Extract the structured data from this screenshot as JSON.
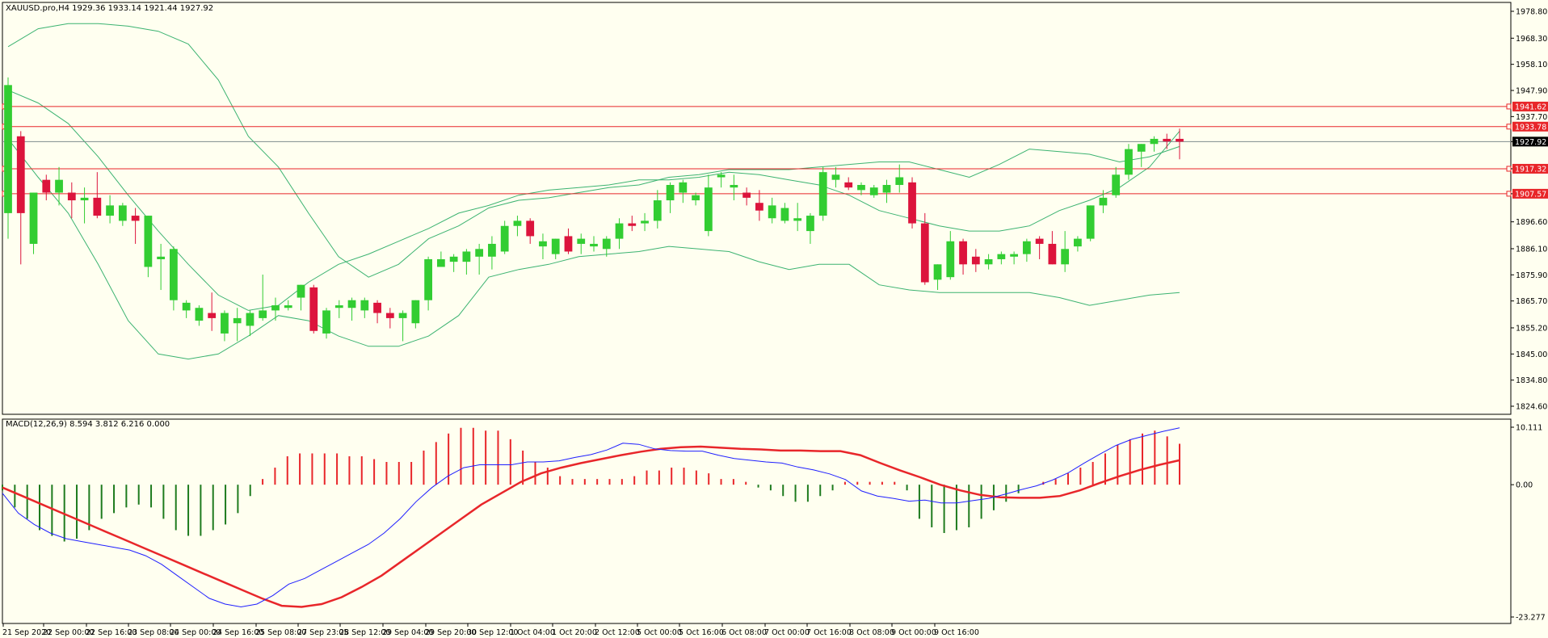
{
  "colors": {
    "background": "#fffff0",
    "bull_candle": "#32cd32",
    "bear_candle": "#dc143c",
    "bollinger": "#3cb371",
    "level_line": "#e8262a",
    "current_line": "#7f8c8d",
    "macd_hist_pos": "#e8262a",
    "macd_hist_neg": "#1e7b1e",
    "macd_line": "#1f1fff",
    "signal_line": "#e8262a"
  },
  "chart_data": [
    {
      "type": "candlestick",
      "title": "XAUUSD.pro,H4  1929.36 1933.14 1921.44 1927.92",
      "ylim": [
        1824.6,
        1978.8
      ],
      "y_ticks": [
        "1978.80",
        "1968.30",
        "1958.10",
        "1947.90",
        "1937.70",
        "1927.92",
        "1917.32",
        "1907.57",
        "1896.60",
        "1886.10",
        "1875.90",
        "1865.70",
        "1855.20",
        "1845.00",
        "1834.80",
        "1824.60"
      ],
      "x_ticks": [
        "21 Sep 2020",
        "22 Sep 00:00",
        "22 Sep 16:00",
        "23 Sep 08:00",
        "24 Sep 00:00",
        "24 Sep 16:00",
        "25 Sep 08:00",
        "27 Sep 23:05",
        "28 Sep 12:00",
        "29 Sep 04:00",
        "29 Sep 20:00",
        "30 Sep 12:00",
        "1 Oct 04:00",
        "1 Oct 20:00",
        "2 Oct 12:00",
        "5 Oct 00:00",
        "5 Oct 16:00",
        "6 Oct 08:00",
        "7 Oct 00:00",
        "7 Oct 16:00",
        "8 Oct 08:00",
        "9 Oct 00:00",
        "9 Oct 16:00"
      ],
      "levels": [
        {
          "price": 1941.62,
          "label": "1941.62"
        },
        {
          "price": 1933.78,
          "label": "1933.78"
        },
        {
          "price": 1917.32,
          "label": "1917.32"
        },
        {
          "price": 1907.57,
          "label": "1907.57"
        }
      ],
      "current_price": {
        "price": 1927.92,
        "label": "1927.92"
      },
      "candles": [
        {
          "o": 1900,
          "h": 1953,
          "l": 1890,
          "c": 1950
        },
        {
          "o": 1930,
          "h": 1932,
          "l": 1880,
          "c": 1900
        },
        {
          "o": 1888,
          "h": 1908,
          "l": 1884,
          "c": 1908
        },
        {
          "o": 1913,
          "h": 1915,
          "l": 1905,
          "c": 1908
        },
        {
          "o": 1908,
          "h": 1918,
          "l": 1903,
          "c": 1913
        },
        {
          "o": 1908,
          "h": 1912,
          "l": 1898,
          "c": 1905
        },
        {
          "o": 1905,
          "h": 1910,
          "l": 1896,
          "c": 1906
        },
        {
          "o": 1906,
          "h": 1916,
          "l": 1898,
          "c": 1899
        },
        {
          "o": 1899,
          "h": 1907,
          "l": 1896,
          "c": 1903
        },
        {
          "o": 1897,
          "h": 1904,
          "l": 1895,
          "c": 1903
        },
        {
          "o": 1899,
          "h": 1902,
          "l": 1888,
          "c": 1897
        },
        {
          "o": 1879,
          "h": 1899,
          "l": 1875,
          "c": 1899
        },
        {
          "o": 1882,
          "h": 1888,
          "l": 1870,
          "c": 1883
        },
        {
          "o": 1866,
          "h": 1887,
          "l": 1862,
          "c": 1886
        },
        {
          "o": 1862,
          "h": 1866,
          "l": 1859,
          "c": 1865
        },
        {
          "o": 1858,
          "h": 1864,
          "l": 1856,
          "c": 1863
        },
        {
          "o": 1861,
          "h": 1869,
          "l": 1854,
          "c": 1859
        },
        {
          "o": 1853,
          "h": 1862,
          "l": 1850,
          "c": 1861
        },
        {
          "o": 1857,
          "h": 1863,
          "l": 1850,
          "c": 1859
        },
        {
          "o": 1856,
          "h": 1862,
          "l": 1852,
          "c": 1861
        },
        {
          "o": 1859,
          "h": 1876,
          "l": 1858,
          "c": 1862
        },
        {
          "o": 1862,
          "h": 1867,
          "l": 1858,
          "c": 1864
        },
        {
          "o": 1863,
          "h": 1866,
          "l": 1862,
          "c": 1864
        },
        {
          "o": 1867,
          "h": 1872,
          "l": 1862,
          "c": 1872
        },
        {
          "o": 1871,
          "h": 1872,
          "l": 1853,
          "c": 1854
        },
        {
          "o": 1853,
          "h": 1863,
          "l": 1851,
          "c": 1862
        },
        {
          "o": 1863,
          "h": 1866,
          "l": 1859,
          "c": 1864
        },
        {
          "o": 1863,
          "h": 1867,
          "l": 1858,
          "c": 1866
        },
        {
          "o": 1862,
          "h": 1867,
          "l": 1859,
          "c": 1866
        },
        {
          "o": 1865,
          "h": 1866,
          "l": 1857,
          "c": 1861
        },
        {
          "o": 1861,
          "h": 1863,
          "l": 1855,
          "c": 1859
        },
        {
          "o": 1859,
          "h": 1862,
          "l": 1850,
          "c": 1861
        },
        {
          "o": 1857,
          "h": 1866,
          "l": 1855,
          "c": 1866
        },
        {
          "o": 1866,
          "h": 1883,
          "l": 1862,
          "c": 1882
        },
        {
          "o": 1879,
          "h": 1885,
          "l": 1879,
          "c": 1882
        },
        {
          "o": 1881,
          "h": 1884,
          "l": 1877,
          "c": 1883
        },
        {
          "o": 1881,
          "h": 1886,
          "l": 1876,
          "c": 1885
        },
        {
          "o": 1883,
          "h": 1888,
          "l": 1876,
          "c": 1886
        },
        {
          "o": 1883,
          "h": 1891,
          "l": 1878,
          "c": 1888
        },
        {
          "o": 1885,
          "h": 1897,
          "l": 1884,
          "c": 1895
        },
        {
          "o": 1895,
          "h": 1899,
          "l": 1891,
          "c": 1897
        },
        {
          "o": 1897,
          "h": 1898,
          "l": 1888,
          "c": 1891
        },
        {
          "o": 1887,
          "h": 1892,
          "l": 1882,
          "c": 1889
        },
        {
          "o": 1884,
          "h": 1890,
          "l": 1882,
          "c": 1890
        },
        {
          "o": 1891,
          "h": 1894,
          "l": 1884,
          "c": 1885
        },
        {
          "o": 1888,
          "h": 1892,
          "l": 1884,
          "c": 1890
        },
        {
          "o": 1887,
          "h": 1891,
          "l": 1885,
          "c": 1888
        },
        {
          "o": 1886,
          "h": 1891,
          "l": 1883,
          "c": 1890
        },
        {
          "o": 1890,
          "h": 1898,
          "l": 1886,
          "c": 1896
        },
        {
          "o": 1896,
          "h": 1899,
          "l": 1893,
          "c": 1895
        },
        {
          "o": 1896,
          "h": 1900,
          "l": 1893,
          "c": 1897
        },
        {
          "o": 1897,
          "h": 1909,
          "l": 1894,
          "c": 1905
        },
        {
          "o": 1905,
          "h": 1912,
          "l": 1900,
          "c": 1911
        },
        {
          "o": 1908,
          "h": 1913,
          "l": 1904,
          "c": 1912
        },
        {
          "o": 1905,
          "h": 1908,
          "l": 1903,
          "c": 1907
        },
        {
          "o": 1893,
          "h": 1915,
          "l": 1891,
          "c": 1910
        },
        {
          "o": 1914,
          "h": 1916,
          "l": 1910,
          "c": 1915
        },
        {
          "o": 1910,
          "h": 1915,
          "l": 1905,
          "c": 1911
        },
        {
          "o": 1908,
          "h": 1910,
          "l": 1903,
          "c": 1906
        },
        {
          "o": 1904,
          "h": 1909,
          "l": 1897,
          "c": 1901
        },
        {
          "o": 1898,
          "h": 1906,
          "l": 1896,
          "c": 1903
        },
        {
          "o": 1897,
          "h": 1904,
          "l": 1896,
          "c": 1902
        },
        {
          "o": 1897,
          "h": 1904,
          "l": 1893,
          "c": 1898
        },
        {
          "o": 1893,
          "h": 1900,
          "l": 1888,
          "c": 1899
        },
        {
          "o": 1899,
          "h": 1918,
          "l": 1897,
          "c": 1916
        },
        {
          "o": 1913,
          "h": 1918,
          "l": 1910,
          "c": 1915
        },
        {
          "o": 1912,
          "h": 1914,
          "l": 1909,
          "c": 1910
        },
        {
          "o": 1909,
          "h": 1912,
          "l": 1907,
          "c": 1911
        },
        {
          "o": 1907,
          "h": 1911,
          "l": 1906,
          "c": 1910
        },
        {
          "o": 1908,
          "h": 1913,
          "l": 1904,
          "c": 1911
        },
        {
          "o": 1911,
          "h": 1919,
          "l": 1908,
          "c": 1914
        },
        {
          "o": 1912,
          "h": 1914,
          "l": 1894,
          "c": 1896
        },
        {
          "o": 1896,
          "h": 1900,
          "l": 1872,
          "c": 1873
        },
        {
          "o": 1874,
          "h": 1880,
          "l": 1870,
          "c": 1880
        },
        {
          "o": 1875,
          "h": 1893,
          "l": 1874,
          "c": 1889
        },
        {
          "o": 1889,
          "h": 1890,
          "l": 1876,
          "c": 1880
        },
        {
          "o": 1883,
          "h": 1886,
          "l": 1877,
          "c": 1880
        },
        {
          "o": 1880,
          "h": 1884,
          "l": 1878,
          "c": 1882
        },
        {
          "o": 1882,
          "h": 1885,
          "l": 1880,
          "c": 1884
        },
        {
          "o": 1883,
          "h": 1885,
          "l": 1880,
          "c": 1884
        },
        {
          "o": 1884,
          "h": 1890,
          "l": 1881,
          "c": 1889
        },
        {
          "o": 1890,
          "h": 1891,
          "l": 1882,
          "c": 1888
        },
        {
          "o": 1888,
          "h": 1893,
          "l": 1880,
          "c": 1880
        },
        {
          "o": 1880,
          "h": 1893,
          "l": 1877,
          "c": 1886
        },
        {
          "o": 1887,
          "h": 1891,
          "l": 1885,
          "c": 1890
        },
        {
          "o": 1890,
          "h": 1903,
          "l": 1889,
          "c": 1903
        },
        {
          "o": 1903,
          "h": 1909,
          "l": 1900,
          "c": 1906
        },
        {
          "o": 1907,
          "h": 1918,
          "l": 1906,
          "c": 1915
        },
        {
          "o": 1915,
          "h": 1927,
          "l": 1913,
          "c": 1925
        },
        {
          "o": 1924,
          "h": 1927,
          "l": 1918,
          "c": 1927
        },
        {
          "o": 1927,
          "h": 1930,
          "l": 1924,
          "c": 1929
        },
        {
          "o": 1929,
          "h": 1931,
          "l": 1925,
          "c": 1928
        },
        {
          "o": 1929,
          "h": 1933,
          "l": 1921,
          "c": 1927.92
        }
      ],
      "bollinger": {
        "upper": [
          1965,
          1972,
          1974,
          1974,
          1973,
          1971,
          1966,
          1952,
          1930,
          1918,
          1900,
          1883,
          1875,
          1880,
          1890,
          1895,
          1902,
          1905,
          1906,
          1908,
          1910,
          1911,
          1914,
          1915,
          1917,
          1917,
          1917,
          1918,
          1919,
          1920,
          1920,
          1917,
          1914,
          1919,
          1925,
          1924,
          1923,
          1920,
          1922,
          1926
        ],
        "middle": [
          1948,
          1943,
          1935,
          1922,
          1907,
          1893,
          1880,
          1868,
          1862,
          1864,
          1873,
          1880,
          1884,
          1889,
          1894,
          1900,
          1903,
          1907,
          1909,
          1910,
          1911,
          1913,
          1913,
          1914,
          1916,
          1915,
          1913,
          1911,
          1907,
          1901,
          1898,
          1895,
          1893,
          1893,
          1895,
          1901,
          1905,
          1910,
          1918,
          1932
        ],
        "lower": [
          1929,
          1914,
          1900,
          1880,
          1858,
          1845,
          1843,
          1845,
          1852,
          1860,
          1858,
          1852,
          1848,
          1848,
          1852,
          1860,
          1875,
          1878,
          1880,
          1883,
          1884,
          1885,
          1887,
          1886,
          1885,
          1881,
          1878,
          1880,
          1880,
          1872,
          1870,
          1869,
          1869,
          1869,
          1869,
          1867,
          1864,
          1866,
          1868,
          1869
        ]
      }
    },
    {
      "type": "macd",
      "title": "MACD(12,26,9) 8.594 3.812 6.216 0.000",
      "ylim": [
        -23.277,
        10.111
      ],
      "y_ticks": [
        "10.111",
        "0.00",
        "-23.277"
      ],
      "histogram": [
        -1,
        -4,
        -6,
        -8,
        -9,
        -10,
        -9.5,
        -8,
        -6,
        -5,
        -4,
        -3.5,
        -4,
        -6,
        -8,
        -9,
        -9,
        -8,
        -7,
        -5,
        -2,
        1,
        3,
        5,
        5.5,
        5.5,
        5.5,
        5.5,
        5,
        5,
        4.5,
        4,
        4,
        4,
        6,
        7.5,
        9,
        10,
        10,
        9.5,
        9.5,
        8,
        6,
        4,
        3,
        1.5,
        1,
        1,
        1,
        1,
        1,
        1.5,
        2.5,
        2.5,
        3,
        3,
        2.5,
        2,
        1,
        1,
        0.5,
        -0.5,
        -1,
        -2,
        -3,
        -3,
        -2,
        -1,
        0.5,
        0.5,
        0.5,
        0.5,
        0.5,
        -1,
        -6,
        -7.5,
        -8.5,
        -8,
        -7.5,
        -6,
        -4.5,
        -3,
        -1.5,
        0,
        0.5,
        1,
        2,
        3,
        4,
        5.5,
        7,
        8,
        9,
        9.5,
        8.5,
        7.2
      ],
      "macd": [
        -1.5,
        -5,
        -7,
        -8.5,
        -9.5,
        -10,
        -10.5,
        -11,
        -11.5,
        -12.5,
        -14,
        -16,
        -18,
        -20,
        -21,
        -21.5,
        -21,
        -19.5,
        -17.5,
        -16.5,
        -15,
        -13.5,
        -12,
        -10.5,
        -8.5,
        -6,
        -3,
        -0.5,
        1.5,
        3,
        3.5,
        3.5,
        3.5,
        4,
        4,
        4.2,
        4.8,
        5.3,
        6.1,
        7.3,
        7.1,
        6.3,
        6.0,
        5.9,
        5.9,
        5.2,
        4.6,
        4.3,
        4.0,
        3.8,
        3.1,
        2.6,
        1.9,
        0.9,
        -1.1,
        -2.0,
        -2.4,
        -2.9,
        -2.7,
        -3.2,
        -3.2,
        -2.8,
        -2.4,
        -1.7,
        -0.9,
        -0.2,
        0.8,
        2.1,
        3.8,
        5.4,
        6.9,
        8.0,
        8.7,
        9.4,
        10.0
      ],
      "signal": [
        -0.5,
        -2,
        -3.5,
        -5,
        -6.5,
        -8,
        -9.5,
        -11,
        -12.5,
        -14,
        -15.5,
        -17,
        -18.5,
        -20,
        -21.3,
        -21.5,
        -21,
        -19.8,
        -18,
        -16,
        -13.5,
        -11,
        -8.5,
        -6,
        -3.5,
        -1.5,
        0.5,
        2,
        3,
        3.8,
        4.5,
        5.2,
        5.8,
        6.3,
        6.6,
        6.7,
        6.5,
        6.3,
        6.2,
        6.0,
        6.0,
        5.9,
        5.9,
        5.2,
        3.8,
        2.5,
        1.3,
        0,
        -1,
        -1.8,
        -2.2,
        -2.3,
        -2.3,
        -2.0,
        -1.0,
        0.3,
        1.5,
        2.6,
        3.5,
        4.3
      ]
    }
  ],
  "header": {
    "symbol_info": "XAUUSD.pro,H4  1929.36 1933.14 1921.44 1927.92",
    "macd_info": "MACD(12,26,9) 8.594 3.812 6.216 0.000"
  }
}
